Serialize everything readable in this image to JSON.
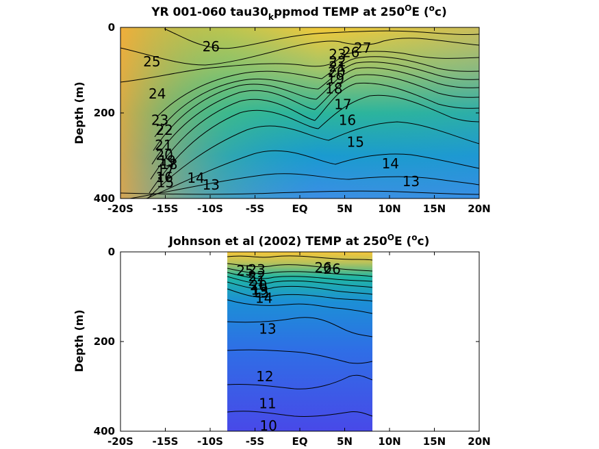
{
  "chart_data": [
    {
      "type": "contour",
      "title_main": "YR 001-060 tau30",
      "title_sub": "k",
      "title_rest": "ppmod TEMP at 250",
      "title_sup1": "O",
      "title_end1": "E (",
      "title_sup2": "o",
      "title_end2": "c)",
      "ylabel": "Depth (m)",
      "xlabel": "",
      "x_ticks": [
        "-20S",
        "-15S",
        "-10S",
        "-5S",
        "EQ",
        "5N",
        "10N",
        "15N",
        "20N"
      ],
      "x_tick_values": [
        -20,
        -15,
        -10,
        -5,
        0,
        5,
        10,
        15,
        20
      ],
      "y_ticks": [
        "0",
        "200",
        "400"
      ],
      "y_tick_values": [
        0,
        200,
        400
      ],
      "xlim": [
        -20,
        20
      ],
      "ylim": [
        0,
        400
      ],
      "y_reversed": true,
      "data_extent": {
        "x": [
          -20,
          20
        ],
        "y": [
          0,
          385
        ]
      },
      "contour_labels": [
        {
          "text": "26",
          "x": -9.9,
          "y": 45
        },
        {
          "text": "25",
          "x": -16.5,
          "y": 80
        },
        {
          "text": "24",
          "x": -15.9,
          "y": 155
        },
        {
          "text": "23",
          "x": -15.6,
          "y": 217
        },
        {
          "text": "22",
          "x": -15.1,
          "y": 240
        },
        {
          "text": "21",
          "x": -15.2,
          "y": 275
        },
        {
          "text": "20",
          "x": -15.1,
          "y": 298
        },
        {
          "text": "19",
          "x": -14.8,
          "y": 312
        },
        {
          "text": "18",
          "x": -14.6,
          "y": 320
        },
        {
          "text": "17",
          "x": -15.0,
          "y": 335
        },
        {
          "text": "16",
          "x": -15.1,
          "y": 350
        },
        {
          "text": "15",
          "x": -15.0,
          "y": 362
        },
        {
          "text": "14",
          "x": -11.6,
          "y": 352
        },
        {
          "text": "13",
          "x": -9.9,
          "y": 368
        },
        {
          "text": "27",
          "x": 7.0,
          "y": 48
        },
        {
          "text": "26",
          "x": 5.7,
          "y": 58
        },
        {
          "text": "23",
          "x": 4.2,
          "y": 63
        },
        {
          "text": "22",
          "x": 4.2,
          "y": 80
        },
        {
          "text": "21",
          "x": 4.2,
          "y": 92
        },
        {
          "text": "20",
          "x": 4.1,
          "y": 105
        },
        {
          "text": "19",
          "x": 4.0,
          "y": 120
        },
        {
          "text": "18",
          "x": 3.8,
          "y": 143
        },
        {
          "text": "17",
          "x": 4.8,
          "y": 180
        },
        {
          "text": "16",
          "x": 5.3,
          "y": 217
        },
        {
          "text": "15",
          "x": 6.2,
          "y": 268
        },
        {
          "text": "14",
          "x": 10.1,
          "y": 318
        },
        {
          "text": "13",
          "x": 12.4,
          "y": 360
        }
      ]
    },
    {
      "type": "contour",
      "title_main": "Johnson et al (2002) TEMP at 250",
      "title_sup1": "O",
      "title_end1": "E (",
      "title_sup2": "o",
      "title_end2": "c)",
      "ylabel": "Depth (m)",
      "xlabel": "",
      "x_ticks": [
        "-20S",
        "-15S",
        "-10S",
        "-5S",
        "EQ",
        "5N",
        "10N",
        "15N",
        "20N"
      ],
      "x_tick_values": [
        -20,
        -15,
        -10,
        -5,
        0,
        5,
        10,
        15,
        20
      ],
      "y_ticks": [
        "0",
        "200",
        "400"
      ],
      "y_tick_values": [
        0,
        200,
        400
      ],
      "xlim": [
        -20,
        20
      ],
      "ylim": [
        0,
        400
      ],
      "y_reversed": true,
      "data_extent": {
        "x": [
          -8,
          8.3
        ],
        "y": [
          0,
          400
        ]
      },
      "contour_labels": [
        {
          "text": "25",
          "x": -6.1,
          "y": 42
        },
        {
          "text": "23",
          "x": -4.8,
          "y": 40
        },
        {
          "text": "22",
          "x": -4.8,
          "y": 55
        },
        {
          "text": "21",
          "x": -4.8,
          "y": 65
        },
        {
          "text": "20",
          "x": -4.6,
          "y": 75
        },
        {
          "text": "19",
          "x": -4.5,
          "y": 85
        },
        {
          "text": "15",
          "x": -4.4,
          "y": 90
        },
        {
          "text": "14",
          "x": -4.0,
          "y": 103
        },
        {
          "text": "26",
          "x": 2.6,
          "y": 35
        },
        {
          "text": "26",
          "x": 3.6,
          "y": 38
        },
        {
          "text": "13",
          "x": -3.6,
          "y": 172
        },
        {
          "text": "12",
          "x": -3.9,
          "y": 278
        },
        {
          "text": "11",
          "x": -3.6,
          "y": 338
        },
        {
          "text": "10",
          "x": -3.5,
          "y": 388
        }
      ]
    }
  ]
}
